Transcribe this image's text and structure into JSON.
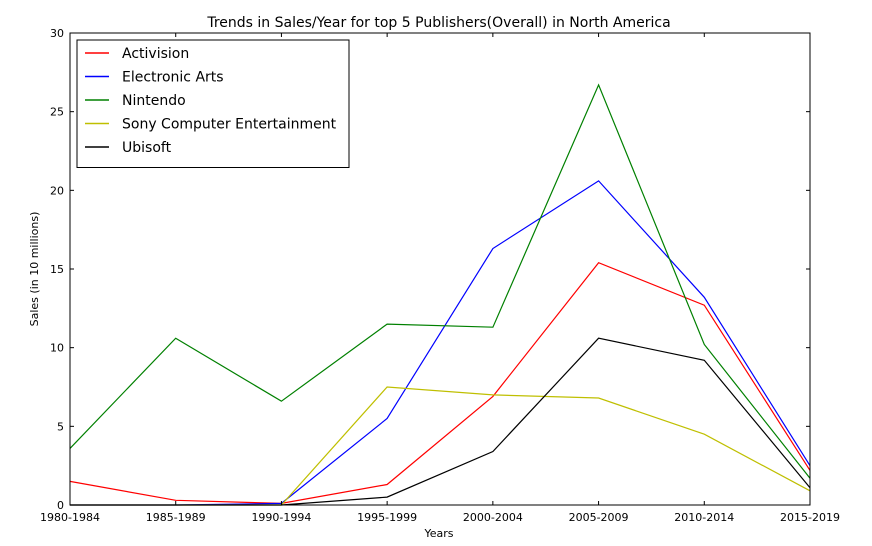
{
  "chart_data": {
    "type": "line",
    "title": "Trends in Sales/Year for top 5 Publishers(Overall) in North America",
    "xlabel": "Years",
    "ylabel": "Sales (in 10 millions)",
    "categories": [
      "1980-1984",
      "1985-1989",
      "1990-1994",
      "1995-1999",
      "2000-2004",
      "2005-2009",
      "2010-2014",
      "2015-2019"
    ],
    "ylim": [
      0,
      30
    ],
    "yticks": [
      "0",
      "5",
      "10",
      "15",
      "20",
      "25",
      "30"
    ],
    "grid": false,
    "legend_position": "top-left",
    "series": [
      {
        "name": "Activision",
        "color": "#ff0000",
        "values": [
          1.5,
          0.3,
          0.1,
          1.3,
          6.9,
          15.4,
          12.7,
          2.2
        ]
      },
      {
        "name": "Electronic Arts",
        "color": "#0000ff",
        "values": [
          0.0,
          0.0,
          0.1,
          5.5,
          16.3,
          20.6,
          13.2,
          2.5
        ]
      },
      {
        "name": "Nintendo",
        "color": "#008000",
        "values": [
          3.6,
          10.6,
          6.6,
          11.5,
          11.3,
          26.7,
          10.2,
          1.7
        ]
      },
      {
        "name": "Sony Computer Entertainment",
        "color": "#bfbf00",
        "values": [
          0.0,
          0.0,
          0.0,
          7.5,
          7.0,
          6.8,
          4.5,
          0.9
        ]
      },
      {
        "name": "Ubisoft",
        "color": "#000000",
        "values": [
          0.0,
          0.0,
          0.0,
          0.5,
          3.4,
          10.6,
          9.2,
          1.1
        ]
      }
    ]
  }
}
